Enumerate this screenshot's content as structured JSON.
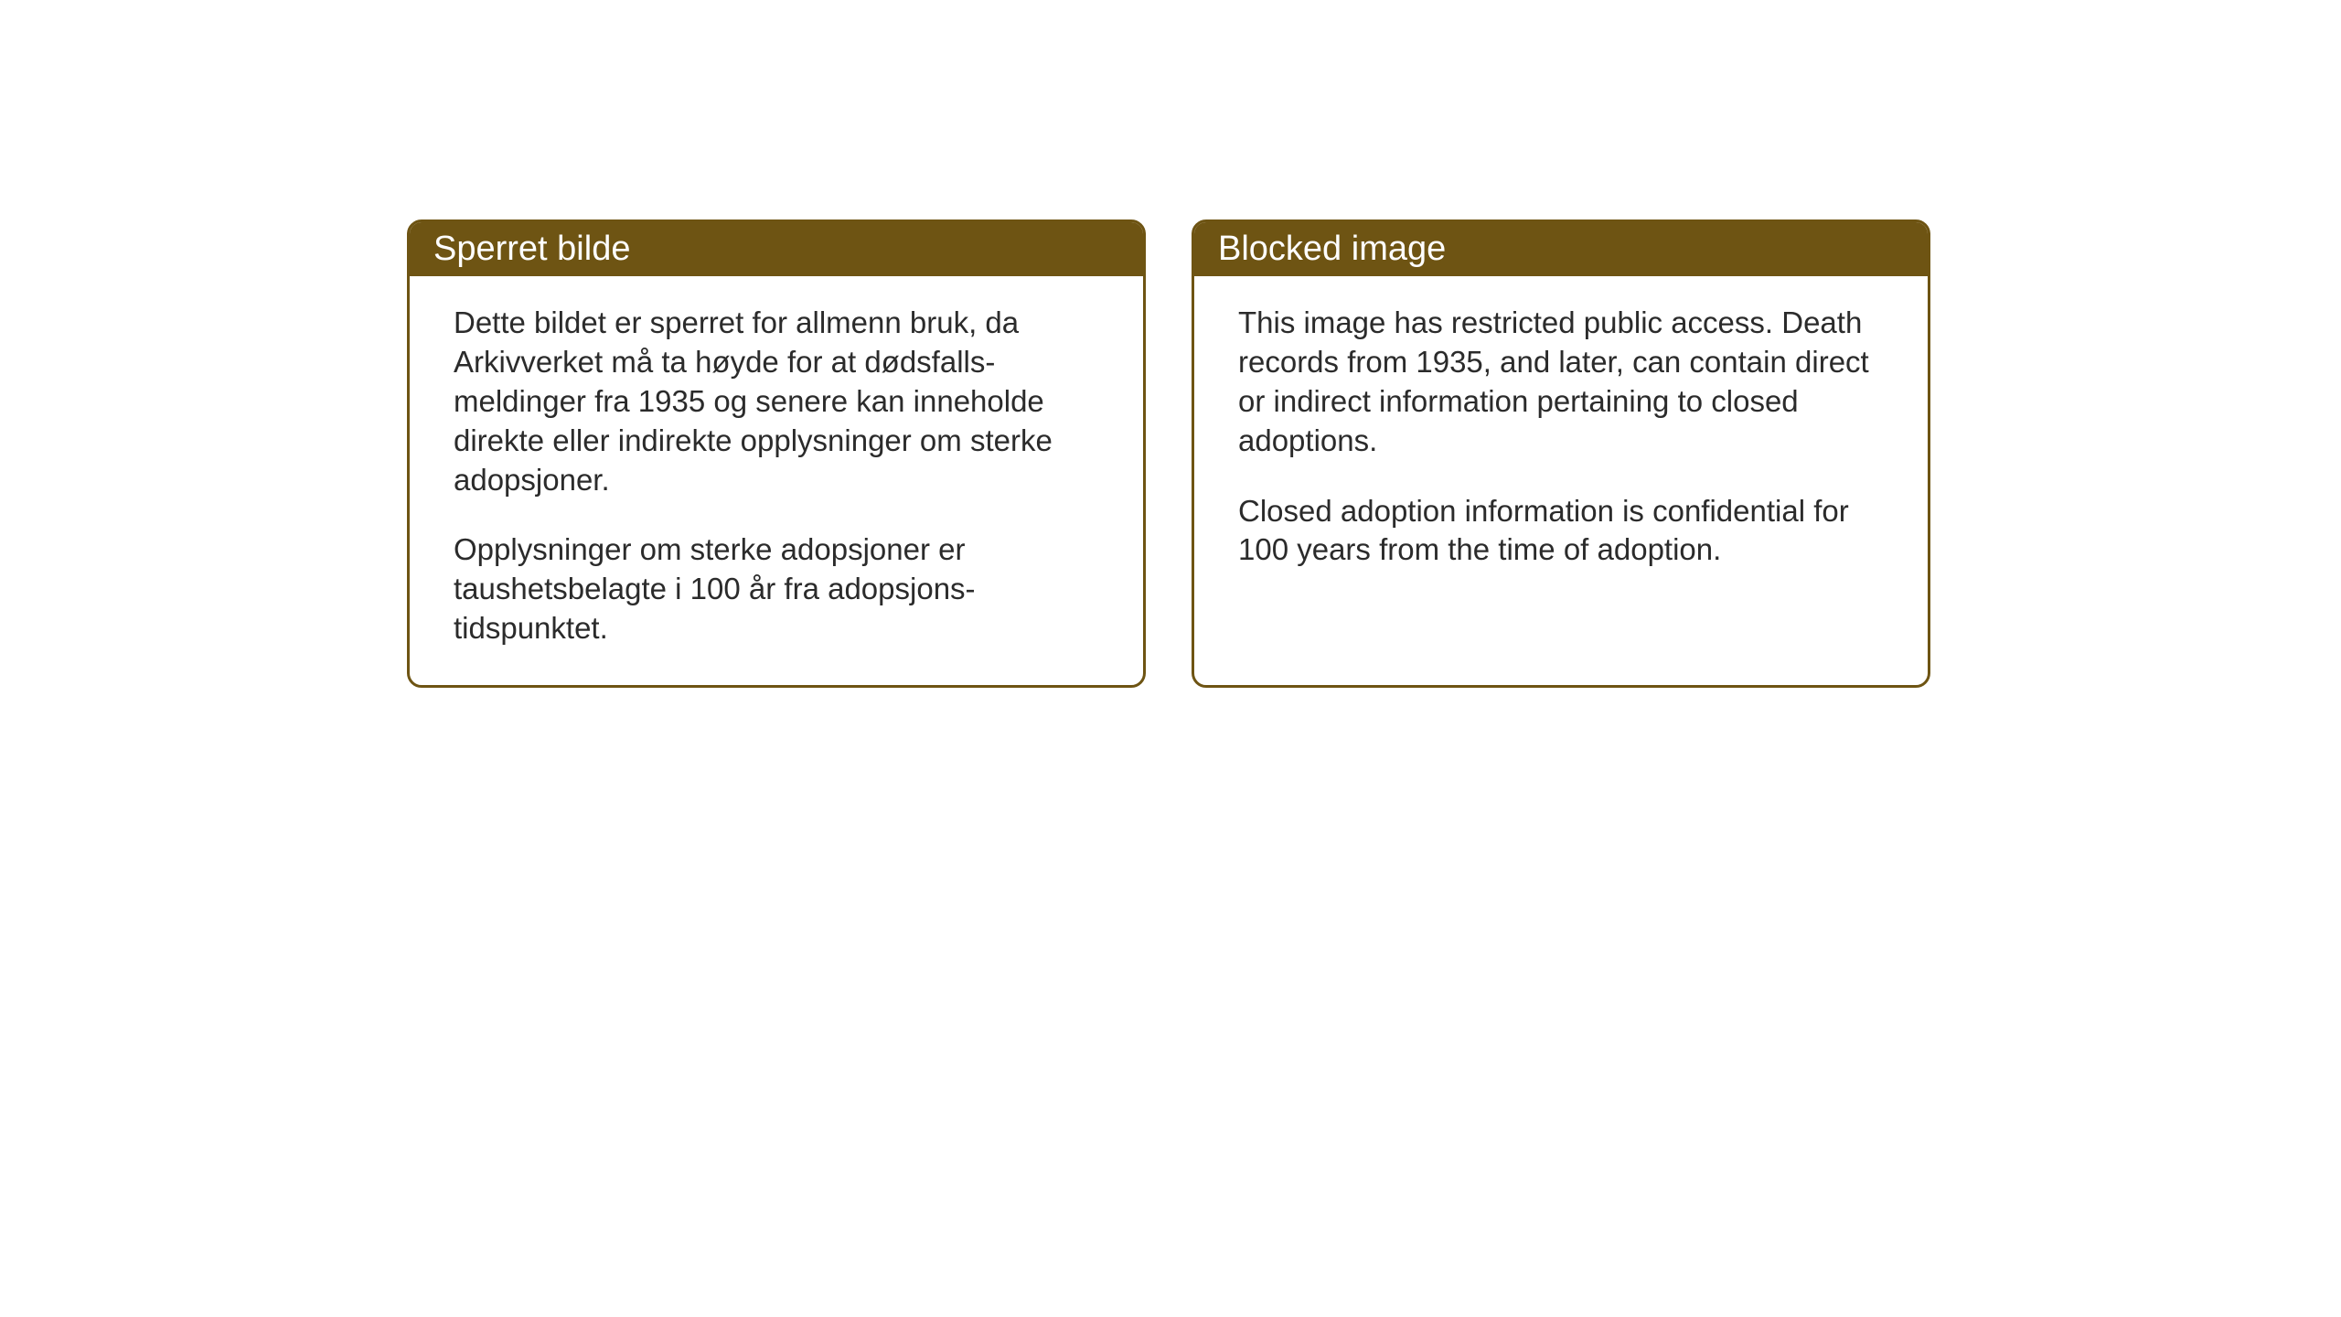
{
  "notices": {
    "left": {
      "title": "Sperret bilde",
      "paragraph1": "Dette bildet er sperret for allmenn bruk, da Arkivverket må ta høyde for at dødsfalls-meldinger fra 1935 og senere kan inneholde direkte eller indirekte opplysninger om sterke adopsjoner.",
      "paragraph2": "Opplysninger om sterke adopsjoner er taushetsbelagte i 100 år fra adopsjons-tidspunktet."
    },
    "right": {
      "title": "Blocked image",
      "paragraph1": "This image has restricted public access. Death records from 1935, and later, can contain direct or indirect information pertaining to closed adoptions.",
      "paragraph2": "Closed adoption information is confidential for 100 years from the time of adoption."
    }
  },
  "styling": {
    "header_bg_color": "#6e5413",
    "header_text_color": "#ffffff",
    "border_color": "#6e5413",
    "body_text_color": "#2b2b2b",
    "background_color": "#ffffff",
    "title_fontsize": 38,
    "body_fontsize": 33,
    "border_radius": 16,
    "border_width": 3
  }
}
